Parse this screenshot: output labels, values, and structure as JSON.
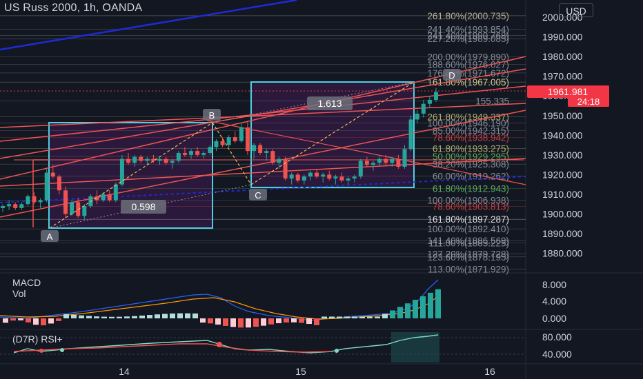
{
  "header": {
    "symbol_title": "US Russ 2000, 1h, OANDA",
    "currency": "USD"
  },
  "price_axis": {
    "labels": [
      "2000.000",
      "1990.000",
      "1980.000",
      "1970.000",
      "1960.000",
      "1950.000",
      "1940.000",
      "1930.000",
      "1920.000",
      "1910.000",
      "1900.000",
      "1890.000",
      "1880.000"
    ],
    "values": [
      2000,
      1990,
      1980,
      1970,
      1960,
      1950,
      1940,
      1930,
      1920,
      1910,
      1900,
      1890,
      1880
    ],
    "last_price": "1961.981",
    "countdown": "24:18"
  },
  "time_axis": {
    "labels": [
      "14",
      "15",
      "16"
    ]
  },
  "panes": {
    "macd_label": "MACD",
    "vol_label": "Vol",
    "macd_axis": [
      "8.000",
      "4.000",
      "0.000"
    ],
    "rsi_label": "(D7R) RSI+",
    "rsi_axis": [
      "80.000",
      "40.000"
    ]
  },
  "fib_levels": [
    {
      "text": "261.80%(2000.735)",
      "price": 2000.735,
      "color": "#cfc9a8"
    },
    {
      "text": "241.40%(1993.854)",
      "price": 1993.854,
      "color": "#9aa0ab"
    },
    {
      "text": "241.40%(1990.768)",
      "price": 1990.768,
      "color": "#9aa0ab"
    },
    {
      "text": "227.20%(1989.085)",
      "price": 1989.085,
      "color": "#9aa0ab"
    },
    {
      "text": "200.00%(1979.890)",
      "price": 1979.89,
      "color": "#9aa0ab"
    },
    {
      "text": "188.60%(1976.027)",
      "price": 1976.027,
      "color": "#9aa0ab"
    },
    {
      "text": "176.60%(1971.672)",
      "price": 1971.672,
      "color": "#9aa0ab"
    },
    {
      "text": "161.80%(1967.005)",
      "price": 1967.005,
      "color": "#e8e3a0"
    },
    {
      "text": "155.335",
      "price": 1957.5,
      "color": "#9aa0ab"
    },
    {
      "text": "261.80%(1949.337)",
      "price": 1949.337,
      "color": "#c9c27a"
    },
    {
      "text": "100.00%(1946.190)",
      "price": 1946.19,
      "color": "#9aa0ab"
    },
    {
      "text": "85.00%(1942.315)",
      "price": 1942.315,
      "color": "#9aa0ab"
    },
    {
      "text": "78.60%(1938.942)",
      "price": 1938.942,
      "color": "#e04a4a"
    },
    {
      "text": "61.80%(1933.275)",
      "price": 1933.275,
      "color": "#c9c27a"
    },
    {
      "text": "50.00%(1929.295)",
      "price": 1929.295,
      "color": "#69c06a"
    },
    {
      "text": "38.20%(1925.308)",
      "price": 1925.308,
      "color": "#9aa0ab"
    },
    {
      "text": "60.00%(1919.262)",
      "price": 1919.262,
      "color": "#9aa0ab"
    },
    {
      "text": "61.80%(1912.943)",
      "price": 1912.943,
      "color": "#69c06a"
    },
    {
      "text": "100.00%(1906.938)",
      "price": 1906.938,
      "color": "#9aa0ab"
    },
    {
      "text": "78.60%(1903.813)",
      "price": 1903.813,
      "color": "#e04a4a"
    },
    {
      "text": "161.80%(1897.287)",
      "price": 1897.287,
      "color": "#ffffff"
    },
    {
      "text": "100.00%(1892.410)",
      "price": 1892.41,
      "color": "#9aa0ab"
    },
    {
      "text": "141.40%(1886.569)",
      "price": 1886.569,
      "color": "#9aa0ab"
    },
    {
      "text": "111.00%(1885.225)",
      "price": 1885.225,
      "color": "#9aa0ab"
    },
    {
      "text": "127.20%(1879.728)",
      "price": 1879.728,
      "color": "#9aa0ab"
    },
    {
      "text": "123.60%(1878.195)",
      "price": 1878.195,
      "color": "#9aa0ab"
    },
    {
      "text": "113.00%(1871.929)",
      "price": 1871.929,
      "color": "#9aa0ab"
    }
  ],
  "pattern_points": [
    {
      "label": "A",
      "time": 0.12,
      "price": 1893.0
    },
    {
      "label": "B",
      "time": 0.55,
      "price": 1946.8
    },
    {
      "label": "C",
      "time": 0.63,
      "price": 1916.3
    },
    {
      "label": "D",
      "time": 1.2,
      "price": 1968.6
    }
  ],
  "ratios": [
    {
      "text": "0.598",
      "time": 0.3,
      "price": 1903.5
    },
    {
      "text": "1.613",
      "time": 0.93,
      "price": 1956.0
    }
  ],
  "colors": {
    "background": "#131722",
    "up": "#26a69a",
    "down": "#ef5350",
    "box": "#4dd0e1",
    "trend": "#f05454",
    "blue": "#1e2bd6",
    "last_price_tag": "#f23645",
    "rsi_band": "#2a9d8f"
  },
  "candles": [
    [
      1903,
      1905,
      1901,
      1904
    ],
    [
      1904,
      1907,
      1902,
      1905
    ],
    [
      1905,
      1906,
      1902,
      1903
    ],
    [
      1903,
      1906,
      1902,
      1905
    ],
    [
      1905,
      1910,
      1904,
      1909
    ],
    [
      1909,
      1911,
      1905,
      1906
    ],
    [
      1906,
      1908,
      1903,
      1907
    ],
    [
      1907,
      1923,
      1906,
      1921
    ],
    [
      1921,
      1925,
      1918,
      1919
    ],
    [
      1919,
      1920,
      1910,
      1912
    ],
    [
      1912,
      1914,
      1898,
      1900
    ],
    [
      1900,
      1907,
      1899,
      1906
    ],
    [
      1906,
      1908,
      1898,
      1899
    ],
    [
      1899,
      1905,
      1897,
      1904
    ],
    [
      1904,
      1910,
      1903,
      1909
    ],
    [
      1909,
      1912,
      1905,
      1907
    ],
    [
      1907,
      1911,
      1906,
      1910
    ],
    [
      1910,
      1912,
      1906,
      1907
    ],
    [
      1907,
      1916,
      1906,
      1915
    ],
    [
      1915,
      1930,
      1914,
      1928
    ],
    [
      1928,
      1931,
      1925,
      1926
    ],
    [
      1926,
      1930,
      1924,
      1929
    ],
    [
      1929,
      1930,
      1926,
      1927
    ],
    [
      1927,
      1929,
      1925,
      1928
    ],
    [
      1928,
      1930,
      1926,
      1927
    ],
    [
      1927,
      1929,
      1925,
      1928
    ],
    [
      1928,
      1929,
      1925,
      1926
    ],
    [
      1926,
      1928,
      1923,
      1927
    ],
    [
      1927,
      1932,
      1926,
      1931
    ],
    [
      1931,
      1934,
      1929,
      1930
    ],
    [
      1930,
      1933,
      1928,
      1932
    ],
    [
      1932,
      1934,
      1929,
      1930
    ],
    [
      1930,
      1932,
      1928,
      1931
    ],
    [
      1931,
      1935,
      1930,
      1934
    ],
    [
      1934,
      1938,
      1932,
      1937
    ],
    [
      1937,
      1939,
      1934,
      1935
    ],
    [
      1935,
      1940,
      1934,
      1939
    ],
    [
      1939,
      1942,
      1936,
      1937
    ],
    [
      1937,
      1946,
      1936,
      1944
    ],
    [
      1944,
      1947,
      1930,
      1932
    ],
    [
      1932,
      1936,
      1928,
      1935
    ],
    [
      1935,
      1936,
      1930,
      1931
    ],
    [
      1931,
      1933,
      1927,
      1932
    ],
    [
      1932,
      1933,
      1925,
      1926
    ],
    [
      1926,
      1929,
      1923,
      1928
    ],
    [
      1928,
      1929,
      1917,
      1918
    ],
    [
      1918,
      1921,
      1915,
      1920
    ],
    [
      1920,
      1921,
      1916,
      1917
    ],
    [
      1917,
      1920,
      1915,
      1919
    ],
    [
      1919,
      1922,
      1917,
      1921
    ],
    [
      1921,
      1923,
      1918,
      1919
    ],
    [
      1919,
      1921,
      1916,
      1920
    ],
    [
      1920,
      1922,
      1917,
      1918
    ],
    [
      1918,
      1920,
      1915,
      1919
    ],
    [
      1919,
      1921,
      1916,
      1917
    ],
    [
      1917,
      1919,
      1915,
      1918
    ],
    [
      1918,
      1920,
      1916,
      1919
    ],
    [
      1919,
      1928,
      1918,
      1927
    ],
    [
      1927,
      1929,
      1924,
      1925
    ],
    [
      1925,
      1927,
      1922,
      1926
    ],
    [
      1926,
      1929,
      1924,
      1928
    ],
    [
      1928,
      1930,
      1925,
      1926
    ],
    [
      1926,
      1929,
      1924,
      1928
    ],
    [
      1928,
      1930,
      1923,
      1924
    ],
    [
      1924,
      1935,
      1923,
      1933
    ],
    [
      1933,
      1950,
      1932,
      1948
    ],
    [
      1948,
      1953,
      1946,
      1951
    ],
    [
      1951,
      1958,
      1949,
      1956
    ],
    [
      1956,
      1960,
      1954,
      1958
    ],
    [
      1958,
      1964,
      1957,
      1962
    ]
  ]
}
